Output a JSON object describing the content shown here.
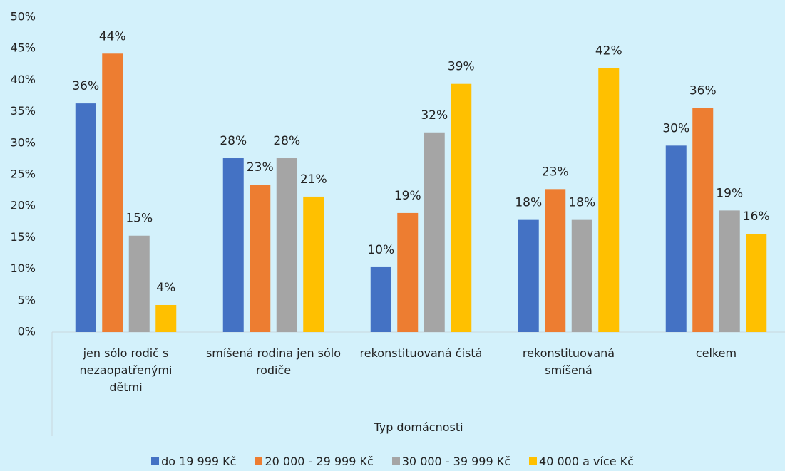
{
  "chart_data": {
    "type": "bar",
    "x_label": "Typ domácnosti",
    "categories": [
      "jen sólo rodič s nezaopatřenými dětmi",
      "smíšená rodina jen sólo rodiče",
      "rekonstituovaná čistá",
      "rekonstituovaná smíšená",
      "celkem"
    ],
    "series": [
      {
        "name": "do 19 999 Kč",
        "color": "#4472c4",
        "values": [
          36.3,
          27.6,
          10.3,
          17.8,
          29.6
        ],
        "value_labels": [
          "36%",
          "28%",
          "10%",
          "18%",
          "30%"
        ]
      },
      {
        "name": "20 000 - 29 999 Kč",
        "color": "#ed7d31",
        "values": [
          44.2,
          23.4,
          18.9,
          22.7,
          35.6
        ],
        "value_labels": [
          "44%",
          "23%",
          "19%",
          "23%",
          "36%"
        ]
      },
      {
        "name": "30 000 - 39 999 Kč",
        "color": "#a5a5a5",
        "values": [
          15.3,
          27.6,
          31.7,
          17.8,
          19.3
        ],
        "value_labels": [
          "15%",
          "28%",
          "32%",
          "18%",
          "19%"
        ]
      },
      {
        "name": "40 000 a více Kč",
        "color": "#ffc000",
        "values": [
          4.3,
          21.5,
          39.4,
          41.9,
          15.6
        ],
        "value_labels": [
          "4%",
          "21%",
          "39%",
          "42%",
          "16%"
        ]
      }
    ],
    "ylim": [
      0,
      50
    ],
    "yticks": [
      {
        "value": 0,
        "label": "0%"
      },
      {
        "value": 5,
        "label": "5%"
      },
      {
        "value": 10,
        "label": "10%"
      },
      {
        "value": 15,
        "label": "15%"
      },
      {
        "value": 20,
        "label": "20%"
      },
      {
        "value": 25,
        "label": "25%"
      },
      {
        "value": 30,
        "label": "30%"
      },
      {
        "value": 35,
        "label": "35%"
      },
      {
        "value": 40,
        "label": "40%"
      },
      {
        "value": 45,
        "label": "45%"
      },
      {
        "value": 50,
        "label": "50%"
      }
    ],
    "grid": false,
    "legend": "bottom"
  }
}
